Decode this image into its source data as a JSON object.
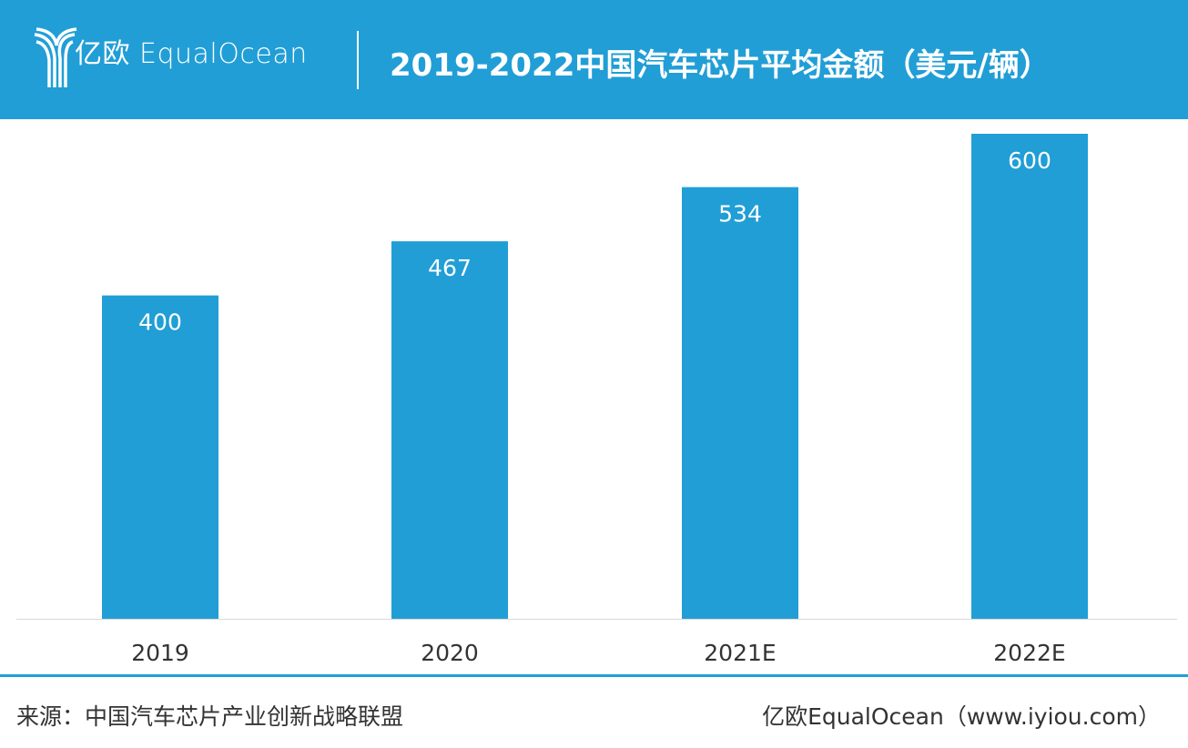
{
  "header": {
    "logo_text": "亿欧 EqualOcean",
    "title": "2019-2022中国汽车芯片平均金额（美元/辆）"
  },
  "colors": {
    "brand": "#219ed6",
    "bar": "#219ed6"
  },
  "chart_data": {
    "type": "bar",
    "title": "2019-2022中国汽车芯片平均金额（美元/辆）",
    "categories": [
      "2019",
      "2020",
      "2021E",
      "2022E"
    ],
    "values": [
      400,
      467,
      534,
      600
    ],
    "data_labels": [
      "400",
      "467",
      "534",
      "600"
    ],
    "xlabel": "",
    "ylabel": "",
    "ylim": [
      0,
      600
    ],
    "grid": false
  },
  "footer": {
    "source": "来源：中国汽车芯片产业创新战略联盟",
    "credit": "亿欧EqualOcean（www.iyiou.com）"
  }
}
